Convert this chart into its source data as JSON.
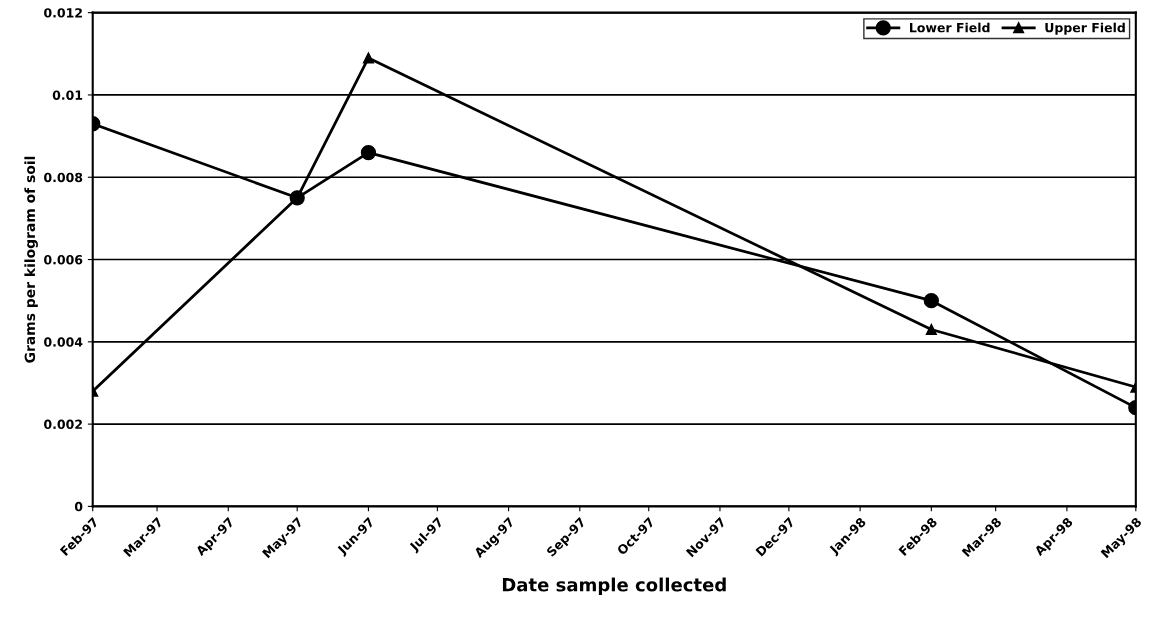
{
  "chart_data": {
    "type": "line",
    "xlabel": "Date sample collected",
    "ylabel": "Grams per kilogram of soil",
    "series": [
      {
        "name": "Lower Field",
        "color": "#000000",
        "marker": "circle",
        "x": [
          "1997-02",
          "1997-05",
          "1997-06",
          "1998-02",
          "1998-05"
        ],
        "values": [
          0.0093,
          0.0075,
          0.0086,
          0.005,
          0.0024
        ]
      },
      {
        "name": "Upper Field",
        "color": "#000000",
        "marker": "triangle",
        "x": [
          "1997-02",
          "1997-05",
          "1997-06",
          "1998-02",
          "1998-05"
        ],
        "values": [
          0.0028,
          0.0075,
          0.0109,
          0.0043,
          0.0029
        ]
      }
    ],
    "xlim": [
      "1997-02",
      "1998-05"
    ],
    "xticks": [
      {
        "value": "1997-02",
        "label": "Feb-97"
      },
      {
        "value": "1997-03",
        "label": "Mar-97"
      },
      {
        "value": "1997-04",
        "label": "Apr-97"
      },
      {
        "value": "1997-05",
        "label": "May-97"
      },
      {
        "value": "1997-06",
        "label": "Jun-97"
      },
      {
        "value": "1997-07",
        "label": "Jul-97"
      },
      {
        "value": "1997-08",
        "label": "Aug-97"
      },
      {
        "value": "1997-09",
        "label": "Sep-97"
      },
      {
        "value": "1997-10",
        "label": "Oct-97"
      },
      {
        "value": "1997-11",
        "label": "Nov-97"
      },
      {
        "value": "1997-12",
        "label": "Dec-97"
      },
      {
        "value": "1998-01",
        "label": "Jan-98"
      },
      {
        "value": "1998-02",
        "label": "Feb-98"
      },
      {
        "value": "1998-03",
        "label": "Mar-98"
      },
      {
        "value": "1998-04",
        "label": "Apr-98"
      },
      {
        "value": "1998-05",
        "label": "May-98"
      }
    ],
    "ylim": [
      0,
      0.012
    ],
    "yticks": [
      0,
      0.002,
      0.004,
      0.006,
      0.008,
      0.01,
      0.012
    ],
    "grid": "y",
    "legend": "top right",
    "line_style": "solid"
  }
}
